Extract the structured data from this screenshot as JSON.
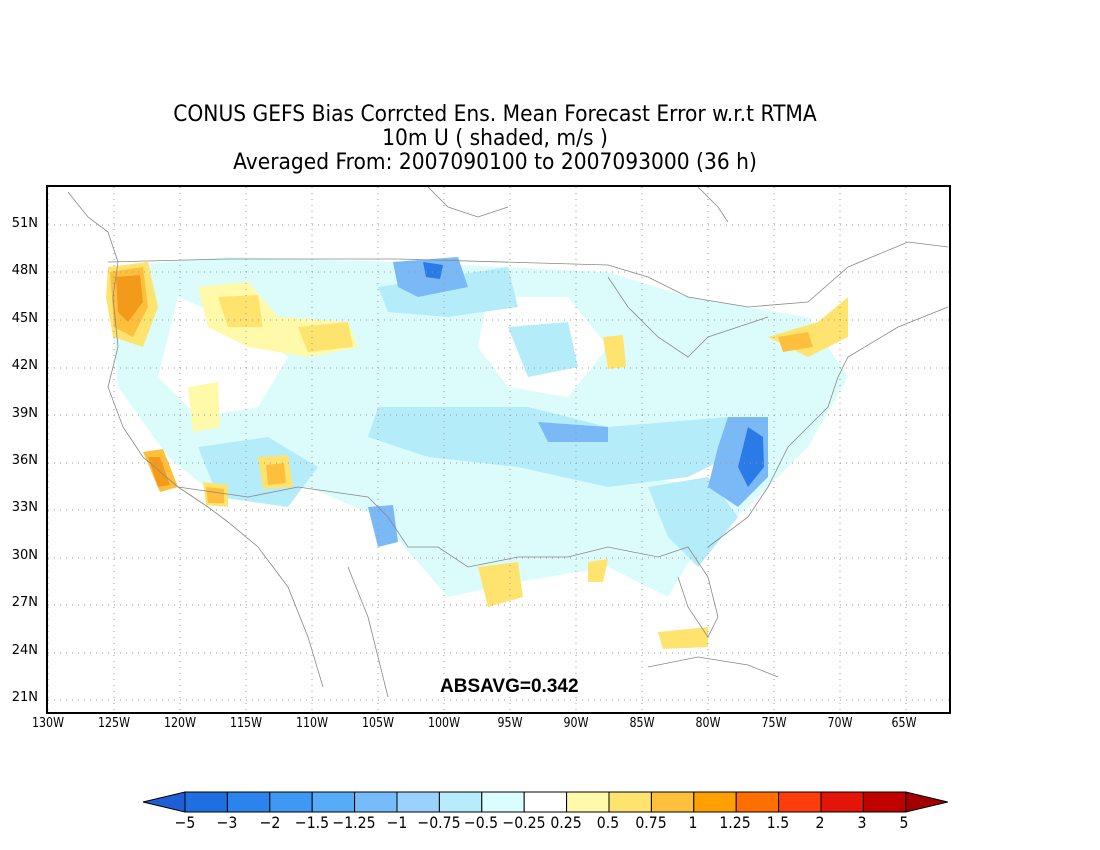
{
  "title": {
    "line1": "CONUS GEFS Bias Corrcted Ens. Mean Forecast Error w.r.t RTMA",
    "line2": "10m U ( shaded, m/s )",
    "line3": "Averaged From: 2007090100 to 2007093000 (36 h)"
  },
  "annotation": "ABSAVG=0.342",
  "map": {
    "lat_labels": [
      "51N",
      "48N",
      "45N",
      "42N",
      "39N",
      "36N",
      "33N",
      "30N",
      "27N",
      "24N",
      "21N"
    ],
    "lon_labels": [
      "130W",
      "125W",
      "120W",
      "115W",
      "110W",
      "105W",
      "100W",
      "95W",
      "90W",
      "85W",
      "80W",
      "75W",
      "70W",
      "65W"
    ],
    "grid": "dotted",
    "colors": {
      "neg_strong": "#2a7ae8",
      "neg_mid": "#7ab9f6",
      "neg_light": "#b4ecf9",
      "neg_faint": "#dcfcfc",
      "pos_faint": "#fffaaa",
      "pos_light": "#fee46f",
      "pos_mid": "#fec03c",
      "pos_strong": "#f49a1b",
      "pos_deep": "#ee6f20"
    }
  },
  "colorbar": {
    "labels": [
      "−5",
      "−3",
      "−2",
      "−1.5",
      "−1.25",
      "−1",
      "−0.75",
      "−0.5",
      "−0.25",
      "0.25",
      "0.5",
      "0.75",
      "1",
      "1.25",
      "1.5",
      "2",
      "3",
      "5"
    ],
    "colors": [
      "#1e5fd6",
      "#1f6fe3",
      "#2b84ee",
      "#3f99f4",
      "#57acf8",
      "#76bcfb",
      "#9bd2fd",
      "#b6ecfb",
      "#dcfdfd",
      "#ffffff",
      "#fffaaa",
      "#fee46f",
      "#fec03c",
      "#ffa000",
      "#ff6f00",
      "#fd3d0c",
      "#e21508",
      "#c10000",
      "#a00000"
    ]
  }
}
